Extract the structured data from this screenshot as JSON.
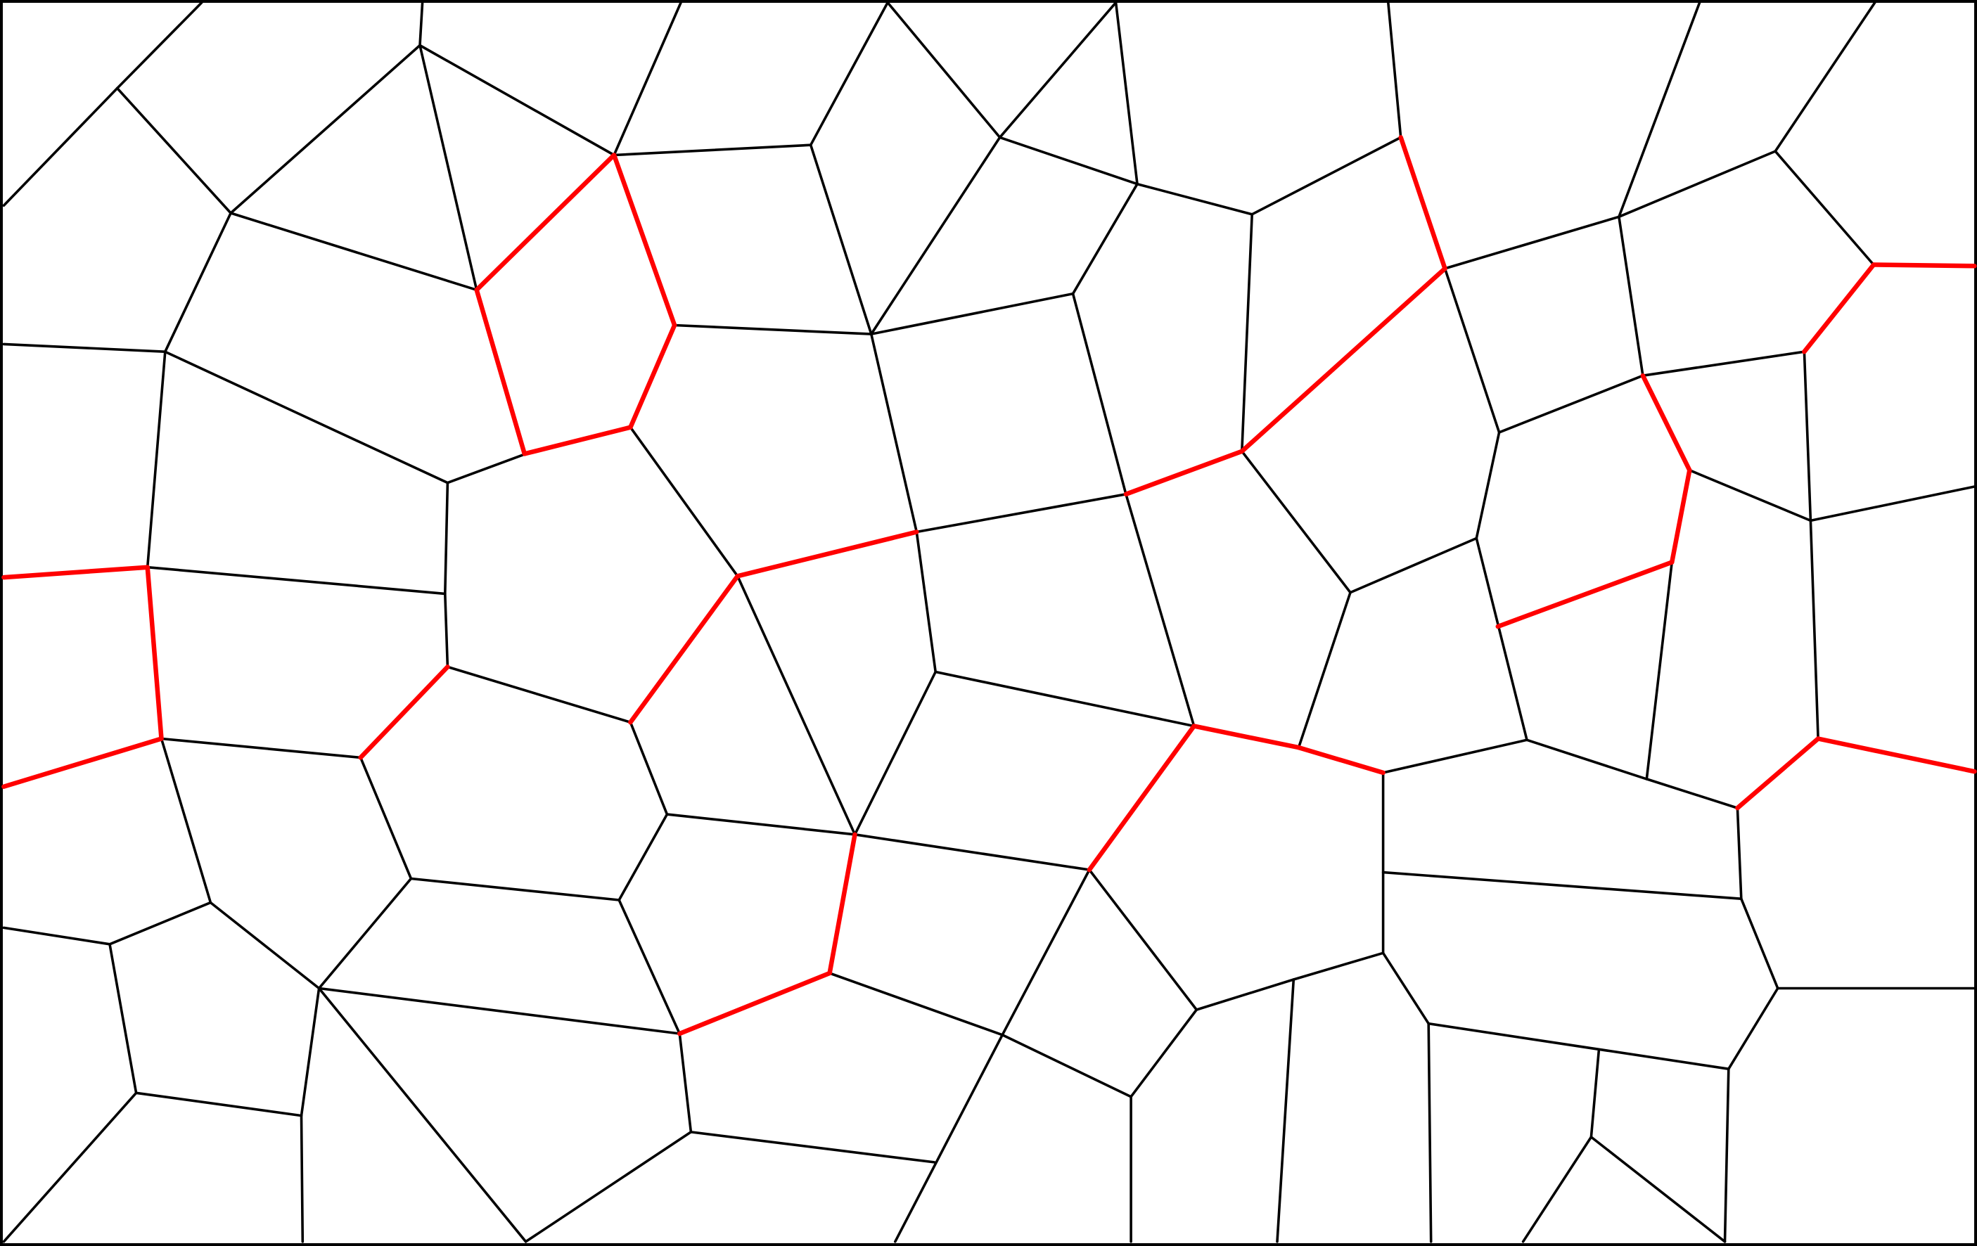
{
  "diagram": {
    "type": "planar-graph",
    "description_kind": "voronoi-like cell mesh with highlighted edges",
    "colors": {
      "background": "#ffffff",
      "edge": "#000000",
      "highlight": "#ff0000"
    }
  }
}
